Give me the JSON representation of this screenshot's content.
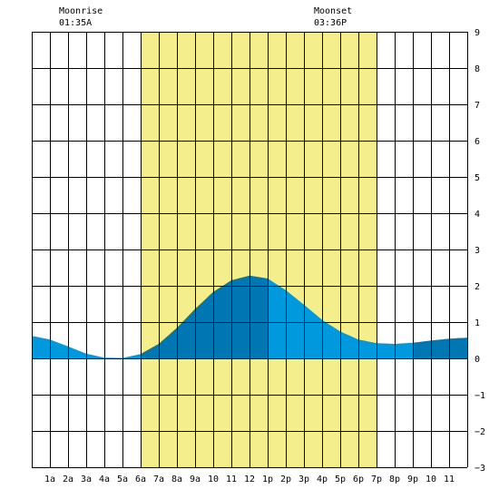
{
  "moon": {
    "moonrise_label": "Moonrise",
    "moonrise_time": "01:35A",
    "moonset_label": "Moonset",
    "moonset_time": "03:36P"
  },
  "colors": {
    "daylight": "#f4ee8c",
    "water_light": "#0099dd",
    "water_dark": "#0077b3",
    "grid": "#000000"
  },
  "chart_data": {
    "type": "area",
    "title": "",
    "xlabel": "",
    "ylabel": "",
    "xlim": [
      0,
      24
    ],
    "ylim": [
      -3,
      9
    ],
    "daylight_hours": [
      6,
      19
    ],
    "x_tick_labels": [
      "1a",
      "2a",
      "3a",
      "4a",
      "5a",
      "6a",
      "7a",
      "8a",
      "9a",
      "10",
      "11",
      "12",
      "1p",
      "2p",
      "3p",
      "4p",
      "5p",
      "6p",
      "7p",
      "8p",
      "9p",
      "10",
      "11"
    ],
    "y_tick_labels": [
      "9",
      "8",
      "7",
      "6",
      "5",
      "4",
      "3",
      "2",
      "1",
      "0",
      "−1",
      "−2",
      "−3"
    ],
    "x": [
      0,
      1,
      2,
      3,
      4,
      5,
      6,
      7,
      8,
      9,
      10,
      11,
      12,
      13,
      14,
      15,
      16,
      17,
      18,
      19,
      20,
      21,
      22,
      23,
      24
    ],
    "values": [
      0.62,
      0.52,
      0.33,
      0.13,
      0.02,
      0.01,
      0.12,
      0.4,
      0.84,
      1.36,
      1.83,
      2.15,
      2.28,
      2.2,
      1.88,
      1.48,
      1.06,
      0.74,
      0.52,
      0.42,
      0.4,
      0.43,
      0.49,
      0.54,
      0.57
    ],
    "dark_shading_ranges": [
      [
        6,
        13
      ],
      [
        21,
        24
      ]
    ]
  }
}
